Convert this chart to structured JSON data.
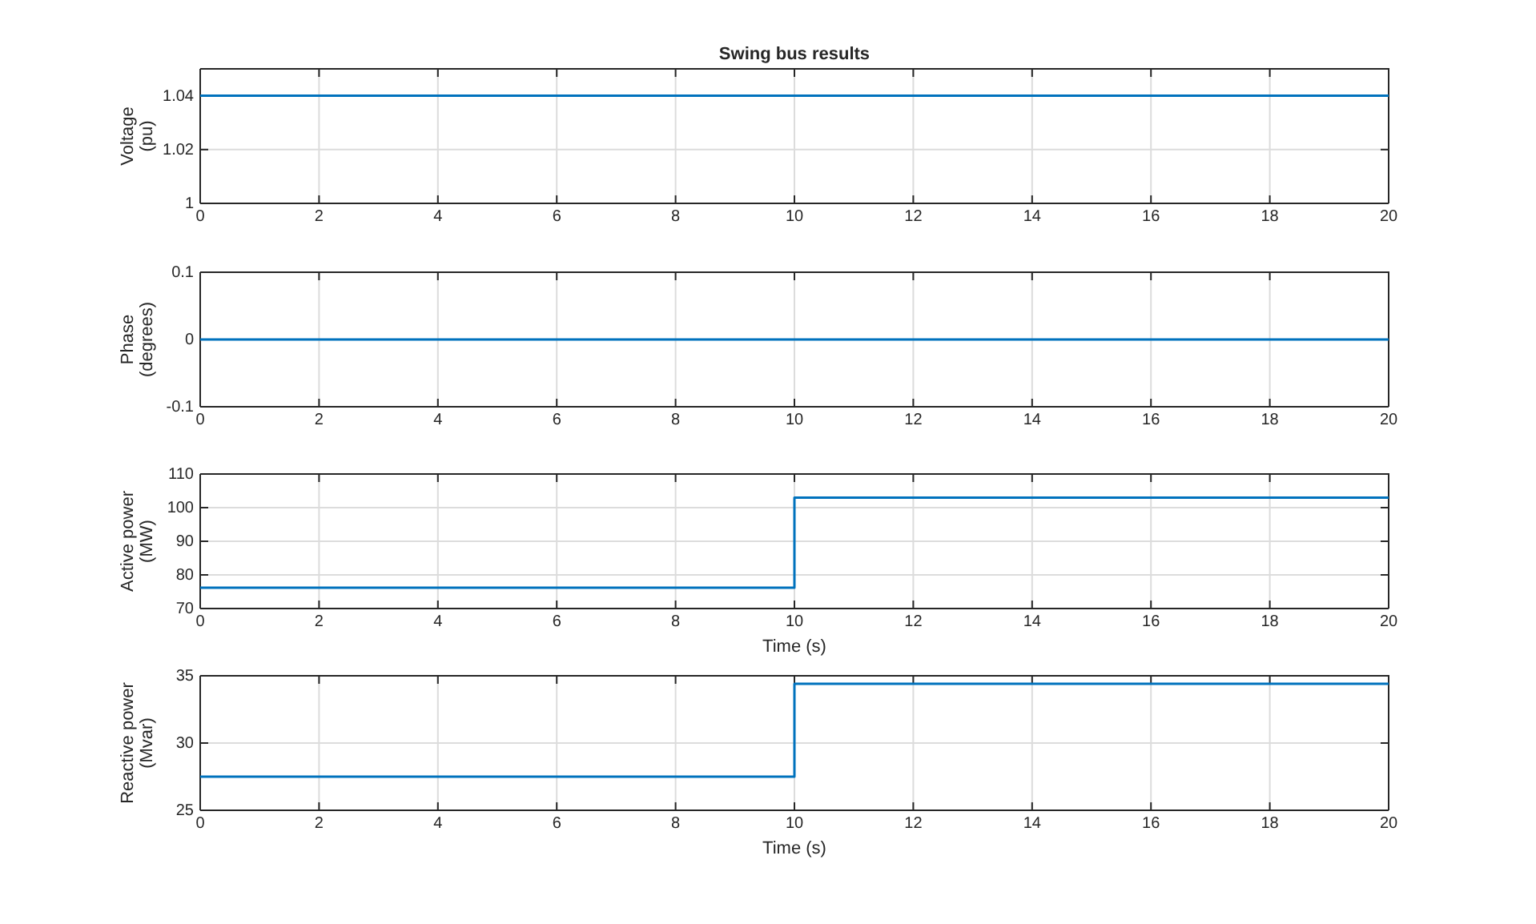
{
  "chart_data": [
    {
      "type": "line",
      "title": "Swing bus results",
      "ylabel": "Voltage\n(pu)",
      "x": [
        0,
        20
      ],
      "xlim": [
        0,
        20
      ],
      "xticks": [
        0,
        2,
        4,
        6,
        8,
        10,
        12,
        14,
        16,
        18,
        20
      ],
      "ylim": [
        1,
        1.05
      ],
      "yticks": [
        1,
        1.02,
        1.04
      ],
      "grid": true,
      "series": [
        {
          "color": "#0072bd",
          "values": [
            1.04,
            1.04
          ]
        }
      ]
    },
    {
      "type": "line",
      "ylabel": "Phase\n(degrees)",
      "x": [
        0,
        20
      ],
      "xlim": [
        0,
        20
      ],
      "xticks": [
        0,
        2,
        4,
        6,
        8,
        10,
        12,
        14,
        16,
        18,
        20
      ],
      "ylim": [
        -0.1,
        0.1
      ],
      "yticks": [
        -0.1,
        0,
        0.1
      ],
      "grid": true,
      "series": [
        {
          "color": "#0072bd",
          "values": [
            0,
            0
          ]
        }
      ]
    },
    {
      "type": "step",
      "ylabel": "Active power\n(MW)",
      "xlabel": "Time (s)",
      "x": [
        0,
        10,
        20
      ],
      "xlim": [
        0,
        20
      ],
      "xticks": [
        0,
        2,
        4,
        6,
        8,
        10,
        12,
        14,
        16,
        18,
        20
      ],
      "ylim": [
        70,
        110
      ],
      "yticks": [
        70,
        80,
        90,
        100,
        110
      ],
      "grid": true,
      "series": [
        {
          "color": "#0072bd",
          "values": [
            76.2,
            103,
            103
          ]
        }
      ]
    },
    {
      "type": "step",
      "ylabel": "Reactive power\n(Mvar)",
      "xlabel": "Time (s)",
      "x": [
        0,
        10,
        20
      ],
      "xlim": [
        0,
        20
      ],
      "xticks": [
        0,
        2,
        4,
        6,
        8,
        10,
        12,
        14,
        16,
        18,
        20
      ],
      "ylim": [
        25,
        35
      ],
      "yticks": [
        25,
        30,
        35
      ],
      "grid": true,
      "series": [
        {
          "color": "#0072bd",
          "values": [
            27.5,
            34.4,
            34.4
          ]
        }
      ]
    }
  ]
}
